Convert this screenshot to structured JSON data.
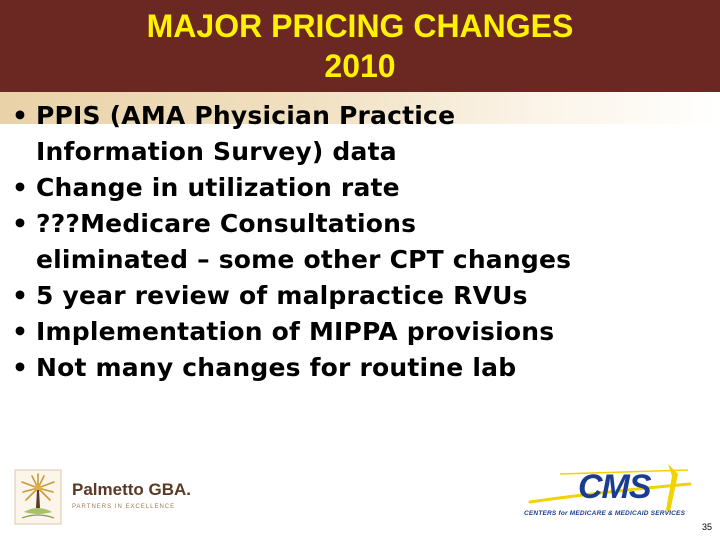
{
  "slide": {
    "title_line1": "MAJOR PRICING CHANGES",
    "title_line2": "2010",
    "bullet_glyph": "•",
    "bullets": [
      [
        "PPIS (AMA Physician Practice",
        "Information Survey) data"
      ],
      [
        "Change in utilization rate"
      ],
      [
        "???Medicare Consultations",
        "eliminated – some other CPT changes"
      ],
      [
        "5 year review of malpractice RVUs"
      ],
      [
        "Implementation of MIPPA provisions"
      ],
      [
        "Not many changes for routine lab"
      ]
    ],
    "page_number": "35"
  },
  "logos": {
    "palmetto_name": "Palmetto GBA.",
    "palmetto_tagline": "PARTNERS IN EXCELLENCE",
    "cms_name": "CMS",
    "cms_subtitle": "CENTERS for MEDICARE & MEDICAID SERVICES"
  },
  "colors": {
    "header_bg": "#6b2823",
    "title_text": "#fff200",
    "accent_band": "#e9d2a8",
    "cms_blue": "#1a3d8f",
    "cms_yellow": "#f2d200",
    "palmetto_brown": "#5a3a25"
  },
  "icons": {
    "palmetto_logo": "palm-tree-icon",
    "cms_logo": "cms-swoosh-icon"
  }
}
